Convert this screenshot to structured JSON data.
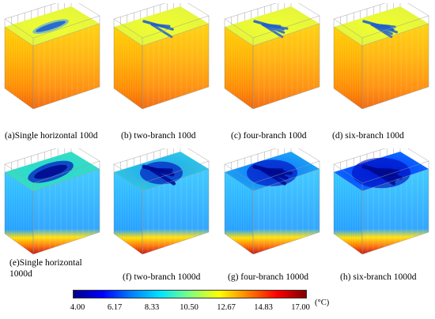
{
  "panels": [
    {
      "caption": "(a)Single horizontal 100d",
      "stage": "100d",
      "branches": 1
    },
    {
      "caption": "(b) two-branch 100d",
      "stage": "100d",
      "branches": 2
    },
    {
      "caption": "(c) four-branch 100d",
      "stage": "100d",
      "branches": 4
    },
    {
      "caption": "(d)   six-branch 100d",
      "stage": "100d",
      "branches": 6
    },
    {
      "caption": "(e)Single horizontal 1000d",
      "stage": "1000d",
      "branches": 1
    },
    {
      "caption": "(f) two-branch 1000d",
      "stage": "1000d",
      "branches": 2
    },
    {
      "caption": "(g) four-branch 1000d",
      "stage": "1000d",
      "branches": 4
    },
    {
      "caption": "(h) six-branch 1000d",
      "stage": "1000d",
      "branches": 6
    }
  ],
  "colorbar": {
    "ticks": [
      "4.00",
      "6.17",
      "8.33",
      "10.50",
      "12.67",
      "14.83",
      "17.00"
    ],
    "unit": "(°C)",
    "colors": [
      "#00008b",
      "#0000ff",
      "#0080ff",
      "#00e5ff",
      "#7fff7f",
      "#ffff00",
      "#ff8000",
      "#ff0000",
      "#800000"
    ]
  }
}
